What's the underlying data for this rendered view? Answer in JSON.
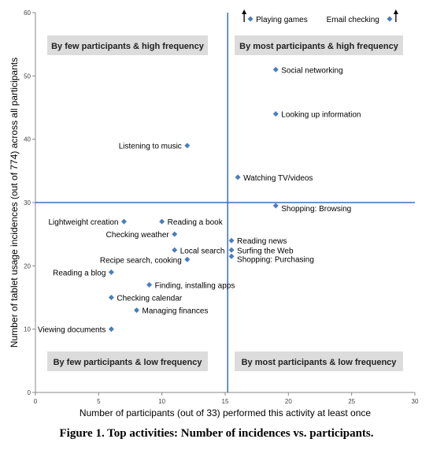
{
  "chart_data": {
    "type": "scatter",
    "title": "",
    "xlabel": "Number of participants (out of 33) performed this activity at least once",
    "ylabel": "Number of tablet usage incidences (out of 774) across all participants",
    "xlim": [
      0,
      30
    ],
    "ylim": [
      0,
      60
    ],
    "xticks": [
      "0",
      "5",
      "10",
      "15",
      "20",
      "25",
      "30"
    ],
    "yticks": [
      "0",
      "10",
      "20",
      "30",
      "40",
      "50",
      "60"
    ],
    "grid": false,
    "divider_x": 15.2,
    "divider_y": 30,
    "marker_color": "#4a7ebb",
    "divider_color": "#3d6fb5",
    "quadrant_box_color": "#dcdcdc",
    "points": [
      {
        "label": "Playing games",
        "x": 17,
        "y": 59,
        "off_scale": true
      },
      {
        "label": "Email checking",
        "x": 28,
        "y": 59,
        "off_scale": true
      },
      {
        "label": "Social networking",
        "x": 19,
        "y": 51
      },
      {
        "label": "Looking up information",
        "x": 19,
        "y": 44
      },
      {
        "label": "Listening to music",
        "x": 12,
        "y": 39
      },
      {
        "label": "Watching TV/videos",
        "x": 16,
        "y": 34
      },
      {
        "label": "Shopping: Browsing",
        "x": 19,
        "y": 29.5
      },
      {
        "label": "Lightweight creation",
        "x": 7,
        "y": 27
      },
      {
        "label": "Reading a book",
        "x": 10,
        "y": 27
      },
      {
        "label": "Checking weather",
        "x": 11,
        "y": 25
      },
      {
        "label": "Reading news",
        "x": 15.5,
        "y": 24
      },
      {
        "label": "Local search",
        "x": 11,
        "y": 22.5
      },
      {
        "label": "Surfing the Web",
        "x": 15.5,
        "y": 22.5
      },
      {
        "label": "Recipe search, cooking",
        "x": 12,
        "y": 21
      },
      {
        "label": "Shopping: Purchasing",
        "x": 15.5,
        "y": 21.5
      },
      {
        "label": "Reading a blog",
        "x": 6,
        "y": 19
      },
      {
        "label": "Finding, installing apps",
        "x": 9,
        "y": 17
      },
      {
        "label": "Checking calendar",
        "x": 6,
        "y": 15
      },
      {
        "label": "Managing finances",
        "x": 8,
        "y": 13
      },
      {
        "label": "Viewing documents",
        "x": 6,
        "y": 10
      }
    ],
    "quadrant_labels": {
      "top_left": "By few participants & high frequency",
      "top_right": "By most participants & high frequency",
      "bottom_left": "By few participants & low frequency",
      "bottom_right": "By most participants & low frequency"
    }
  },
  "caption": "Figure 1. Top activities: Number of incidences vs. participants."
}
